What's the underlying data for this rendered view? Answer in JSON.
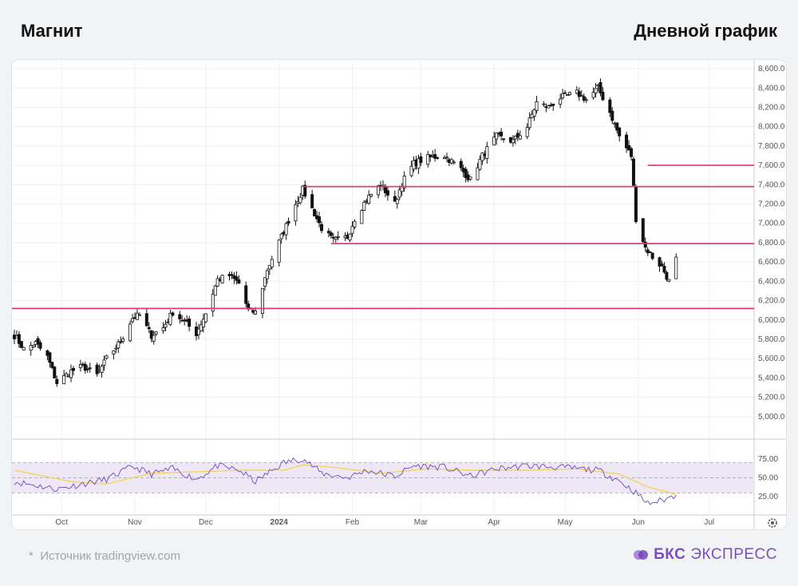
{
  "header": {
    "title": "Магнит",
    "subtitle": "Дневной график"
  },
  "footer": {
    "source_star": "*",
    "source": "Источник tradingview.com",
    "brand_bold": "БКС",
    "brand_rest": "ЭКСПРЕСС"
  },
  "icons": {
    "settings": "gear-icon",
    "brand_logo": "bks-logo-icon"
  },
  "colors": {
    "up": "#111111",
    "down": "#111111",
    "level": "#e8346b",
    "rsi_line": "#7e57c2",
    "rsi_ma": "#f4d35e",
    "rsi_band": "#ede7f6",
    "brand": "#7a4fbf"
  },
  "chart_data": [
    {
      "type": "candlestick",
      "title": "Магнит",
      "subtitle": "Дневной график",
      "x_ticks": [
        "Oct",
        "Nov",
        "Dec",
        "2024",
        "Feb",
        "Mar",
        "Apr",
        "May",
        "Jun",
        "Jul"
      ],
      "x_tick_dates": [
        "2023-10-01",
        "2023-11-01",
        "2023-12-01",
        "2024-01-01",
        "2024-02-01",
        "2024-03-01",
        "2024-04-01",
        "2024-05-01",
        "2024-06-01",
        "2024-07-01"
      ],
      "x_range": [
        "2023-09-10",
        "2024-07-20"
      ],
      "y_ticks": [
        "8,600.0",
        "8,400.0",
        "8,200.0",
        "8,000.0",
        "7,800.0",
        "7,600.0",
        "7,400.0",
        "7,200.0",
        "7,000.0",
        "6,800.0",
        "6,600.0",
        "6,400.0",
        "6,200.0",
        "6,000.0",
        "5,800.0",
        "5,600.0",
        "5,400.0",
        "5,200.0",
        "5,000.0"
      ],
      "y_range": [
        4850,
        8650
      ],
      "grid": true,
      "price_path": [
        [
          "2023-09-11",
          5840
        ],
        [
          "2023-09-15",
          5700
        ],
        [
          "2023-09-20",
          5760
        ],
        [
          "2023-09-25",
          5620
        ],
        [
          "2023-09-29",
          5350
        ],
        [
          "2023-10-05",
          5470
        ],
        [
          "2023-10-10",
          5520
        ],
        [
          "2023-10-16",
          5430
        ],
        [
          "2023-10-20",
          5600
        ],
        [
          "2023-10-26",
          5780
        ],
        [
          "2023-10-31",
          6020
        ],
        [
          "2023-11-03",
          6050
        ],
        [
          "2023-11-08",
          5840
        ],
        [
          "2023-11-13",
          5920
        ],
        [
          "2023-11-17",
          6080
        ],
        [
          "2023-11-22",
          5980
        ],
        [
          "2023-11-27",
          5860
        ],
        [
          "2023-12-01",
          6070
        ],
        [
          "2023-12-06",
          6420
        ],
        [
          "2023-12-11",
          6460
        ],
        [
          "2023-12-15",
          6380
        ],
        [
          "2023-12-19",
          6100
        ],
        [
          "2023-12-22",
          6080
        ],
        [
          "2023-12-27",
          6520
        ],
        [
          "2024-01-03",
          6920
        ],
        [
          "2024-01-08",
          7200
        ],
        [
          "2024-01-11",
          7350
        ],
        [
          "2024-01-15",
          7150
        ],
        [
          "2024-01-19",
          6950
        ],
        [
          "2024-01-24",
          6820
        ],
        [
          "2024-01-30",
          6860
        ],
        [
          "2024-02-02",
          7050
        ],
        [
          "2024-02-07",
          7250
        ],
        [
          "2024-02-13",
          7400
        ],
        [
          "2024-02-19",
          7200
        ],
        [
          "2024-02-22",
          7420
        ],
        [
          "2024-02-27",
          7620
        ],
        [
          "2024-03-04",
          7680
        ],
        [
          "2024-03-11",
          7700
        ],
        [
          "2024-03-18",
          7560
        ],
        [
          "2024-03-22",
          7450
        ],
        [
          "2024-03-27",
          7700
        ],
        [
          "2024-04-02",
          7900
        ],
        [
          "2024-04-09",
          7850
        ],
        [
          "2024-04-15",
          8000
        ],
        [
          "2024-04-19",
          8250
        ],
        [
          "2024-04-24",
          8200
        ],
        [
          "2024-04-29",
          8300
        ],
        [
          "2024-05-06",
          8350
        ],
        [
          "2024-05-10",
          8280
        ],
        [
          "2024-05-15",
          8400
        ],
        [
          "2024-05-20",
          8150
        ],
        [
          "2024-05-24",
          7900
        ],
        [
          "2024-05-29",
          7700
        ],
        [
          "2024-05-31",
          7050
        ],
        [
          "2024-06-04",
          6750
        ],
        [
          "2024-06-07",
          6650
        ],
        [
          "2024-06-11",
          6550
        ],
        [
          "2024-06-14",
          6400
        ],
        [
          "2024-06-17",
          6650
        ]
      ],
      "levels": [
        {
          "y": 7600,
          "from": "2024-06-05",
          "to": "2024-07-20"
        },
        {
          "y": 7380,
          "from": "2024-01-11",
          "to": "2024-07-20"
        },
        {
          "y": 6790,
          "from": "2024-01-23",
          "to": "2024-07-20"
        },
        {
          "y": 6120,
          "from": "2023-09-10",
          "to": "2024-07-20"
        }
      ]
    },
    {
      "type": "line",
      "title": "",
      "y_ticks": [
        "75.00",
        "50.00",
        "25.00"
      ],
      "y_range": [
        5,
        95
      ],
      "band": [
        30,
        70
      ],
      "series": [
        {
          "points": [
            [
              "2023-09-11",
              45
            ],
            [
              "2023-09-20",
              40
            ],
            [
              "2023-09-29",
              35
            ],
            [
              "2023-10-10",
              42
            ],
            [
              "2023-10-20",
              48
            ],
            [
              "2023-10-31",
              65
            ],
            [
              "2023-11-08",
              55
            ],
            [
              "2023-11-17",
              62
            ],
            [
              "2023-11-27",
              48
            ],
            [
              "2023-12-06",
              66
            ],
            [
              "2023-12-15",
              60
            ],
            [
              "2023-12-22",
              45
            ],
            [
              "2024-01-03",
              70
            ],
            [
              "2024-01-11",
              76
            ],
            [
              "2024-01-19",
              56
            ],
            [
              "2024-01-30",
              50
            ],
            [
              "2024-02-07",
              60
            ],
            [
              "2024-02-19",
              52
            ],
            [
              "2024-02-27",
              66
            ],
            [
              "2024-03-11",
              64
            ],
            [
              "2024-03-22",
              52
            ],
            [
              "2024-04-02",
              62
            ],
            [
              "2024-04-15",
              66
            ],
            [
              "2024-04-29",
              64
            ],
            [
              "2024-05-15",
              60
            ],
            [
              "2024-05-24",
              46
            ],
            [
              "2024-05-31",
              30
            ],
            [
              "2024-06-05",
              16
            ],
            [
              "2024-06-11",
              20
            ],
            [
              "2024-06-17",
              27
            ]
          ]
        },
        {
          "points": [
            [
              "2023-09-11",
              60
            ],
            [
              "2023-10-05",
              45
            ],
            [
              "2023-10-20",
              42
            ],
            [
              "2023-11-08",
              56
            ],
            [
              "2023-11-27",
              58
            ],
            [
              "2023-12-15",
              60
            ],
            [
              "2024-01-03",
              60
            ],
            [
              "2024-01-11",
              67
            ],
            [
              "2024-01-24",
              64
            ],
            [
              "2024-02-13",
              56
            ],
            [
              "2024-03-04",
              62
            ],
            [
              "2024-03-22",
              60
            ],
            [
              "2024-04-15",
              60
            ],
            [
              "2024-05-06",
              62
            ],
            [
              "2024-05-24",
              55
            ],
            [
              "2024-06-05",
              38
            ],
            [
              "2024-06-17",
              28
            ]
          ]
        }
      ]
    }
  ]
}
